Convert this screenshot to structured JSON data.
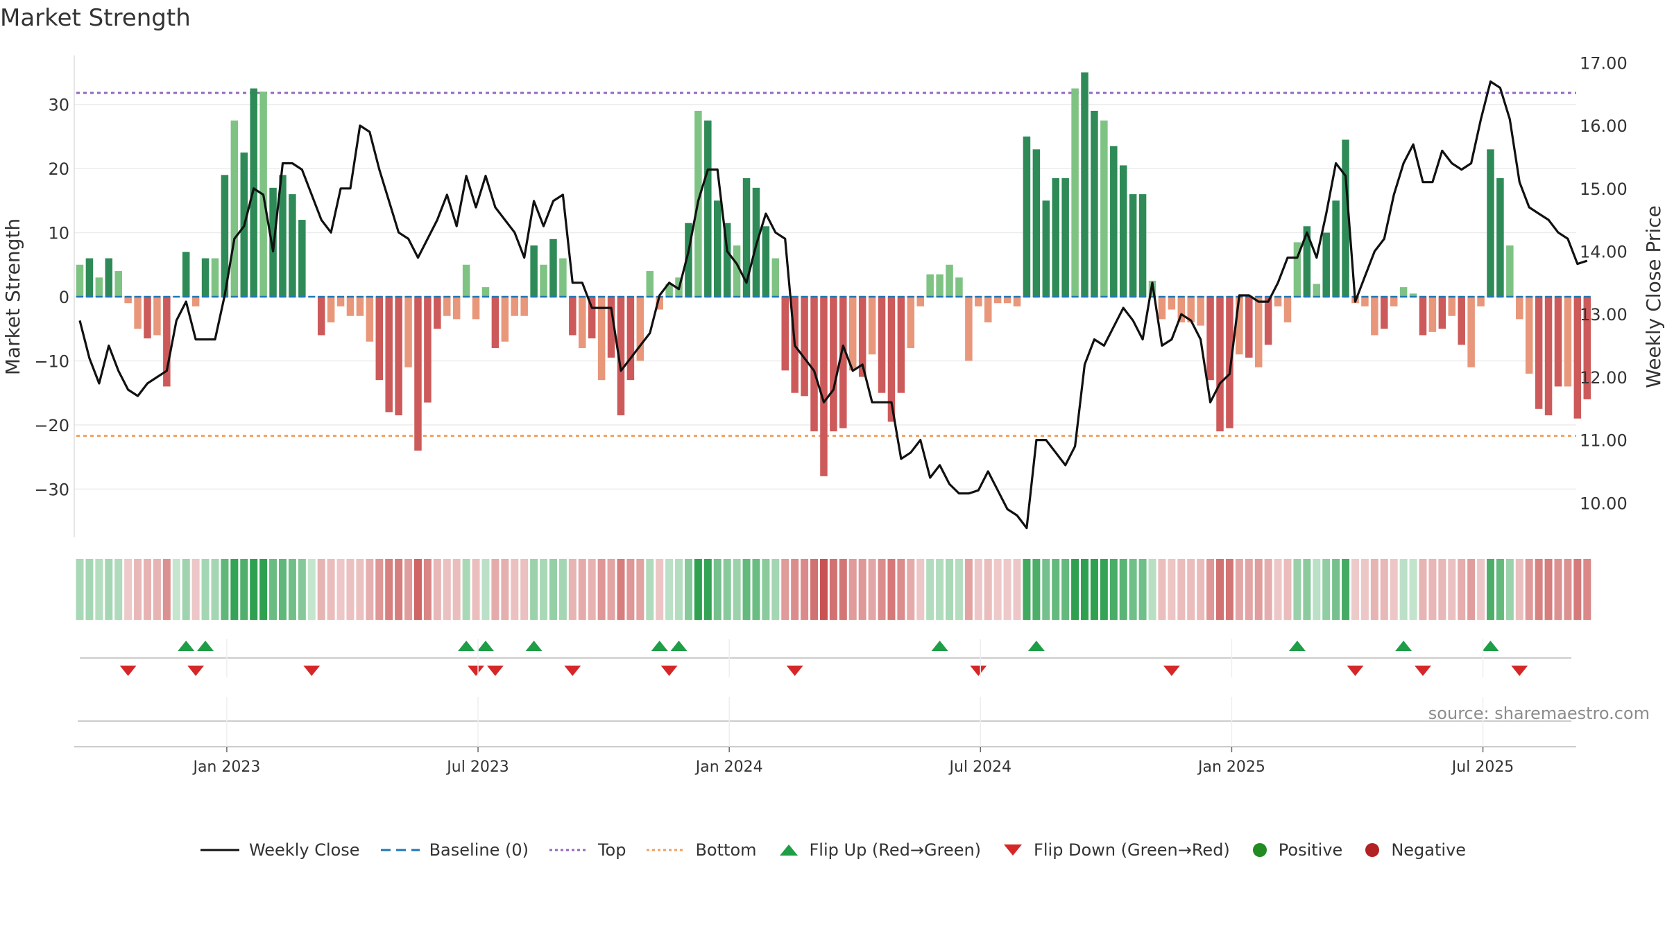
{
  "chart_data": {
    "title": "Market Strength",
    "type": "bar+line",
    "ylabel_left": "Market Strength",
    "ylabel_right": "Weekly Close Price",
    "ylim_left": [
      -37,
      37
    ],
    "ylim_right": [
      9.5,
      17.1
    ],
    "yticks_left": [
      30,
      20,
      10,
      0,
      -10,
      -20,
      -30
    ],
    "yticks_left_labels": [
      "30",
      "20",
      "10",
      "0",
      "−10",
      "−20",
      "−30"
    ],
    "yticks_right": [
      17,
      16,
      15,
      14,
      13,
      12,
      11,
      10
    ],
    "yticks_right_labels": [
      "17.00",
      "16.00",
      "15.00",
      "14.00",
      "13.00",
      "12.00",
      "11.00",
      "10.00"
    ],
    "xticks": [
      {
        "week": 15,
        "label": "Jan 2023"
      },
      {
        "week": 41,
        "label": "Jul 2023"
      },
      {
        "week": 67,
        "label": "Jan 2024"
      },
      {
        "week": 93,
        "label": "Jul 2024"
      },
      {
        "week": 119,
        "label": "Jan 2025"
      },
      {
        "week": 145,
        "label": "Jul 2025"
      }
    ],
    "top_threshold": 31.8,
    "bottom_threshold": -21.7,
    "num_weeks": 157,
    "strength_points": [
      [
        0,
        5
      ],
      [
        1,
        6
      ],
      [
        2,
        3
      ],
      [
        3,
        6
      ],
      [
        4,
        4
      ],
      [
        5,
        -1
      ],
      [
        6,
        -5
      ],
      [
        7,
        -6.5
      ],
      [
        8,
        -6
      ],
      [
        9,
        -14
      ],
      [
        10,
        0
      ],
      [
        11,
        7
      ],
      [
        12,
        -1.5
      ],
      [
        13,
        6
      ],
      [
        14,
        6
      ],
      [
        15,
        19
      ],
      [
        16,
        27.5
      ],
      [
        17,
        22.5
      ],
      [
        18,
        32.5
      ],
      [
        19,
        32
      ],
      [
        20,
        17
      ],
      [
        21,
        19
      ],
      [
        22,
        16
      ],
      [
        23,
        12
      ],
      [
        24,
        0
      ],
      [
        25,
        -6
      ],
      [
        26,
        -4
      ],
      [
        27,
        -1.5
      ],
      [
        28,
        -3
      ],
      [
        29,
        -3
      ],
      [
        30,
        -7
      ],
      [
        31,
        -13
      ],
      [
        32,
        -18
      ],
      [
        33,
        -18.5
      ],
      [
        34,
        -11
      ],
      [
        35,
        -24
      ],
      [
        36,
        -16.5
      ],
      [
        37,
        -5
      ],
      [
        38,
        -3
      ],
      [
        39,
        -3.5
      ],
      [
        40,
        5
      ],
      [
        41,
        -3.5
      ],
      [
        42,
        1.5
      ],
      [
        43,
        -8
      ],
      [
        44,
        -7
      ],
      [
        45,
        -3
      ],
      [
        46,
        -3
      ],
      [
        47,
        8
      ],
      [
        48,
        5
      ],
      [
        49,
        9
      ],
      [
        50,
        6
      ],
      [
        51,
        -6
      ],
      [
        52,
        -8
      ],
      [
        53,
        -6.5
      ],
      [
        54,
        -13
      ],
      [
        55,
        -9.5
      ],
      [
        56,
        -18.5
      ],
      [
        57,
        -13
      ],
      [
        58,
        -10
      ],
      [
        59,
        4
      ],
      [
        60,
        -2
      ],
      [
        61,
        2
      ],
      [
        62,
        3
      ],
      [
        63,
        11.5
      ],
      [
        64,
        29
      ],
      [
        65,
        27.5
      ],
      [
        66,
        15
      ],
      [
        67,
        11.5
      ],
      [
        68,
        8
      ],
      [
        69,
        18.5
      ],
      [
        70,
        17
      ],
      [
        71,
        11
      ],
      [
        72,
        6
      ],
      [
        73,
        -11.5
      ],
      [
        74,
        -15
      ],
      [
        75,
        -15.5
      ],
      [
        76,
        -21
      ],
      [
        77,
        -28
      ],
      [
        78,
        -21
      ],
      [
        79,
        -20.5
      ],
      [
        80,
        -11.5
      ],
      [
        81,
        -12.5
      ],
      [
        82,
        -9
      ],
      [
        83,
        -15
      ],
      [
        84,
        -19.5
      ],
      [
        85,
        -15
      ],
      [
        86,
        -8
      ],
      [
        87,
        -1.5
      ],
      [
        88,
        3.5
      ],
      [
        89,
        3.5
      ],
      [
        90,
        5
      ],
      [
        91,
        3
      ],
      [
        92,
        -10
      ],
      [
        93,
        -1.5
      ],
      [
        94,
        -4
      ],
      [
        95,
        -1
      ],
      [
        96,
        -1
      ],
      [
        97,
        -1.5
      ],
      [
        98,
        25
      ],
      [
        99,
        23
      ],
      [
        100,
        15
      ],
      [
        101,
        18.5
      ],
      [
        102,
        18.5
      ],
      [
        103,
        32.5
      ],
      [
        104,
        35
      ],
      [
        105,
        29
      ],
      [
        106,
        27.5
      ],
      [
        107,
        23.5
      ],
      [
        108,
        20.5
      ],
      [
        109,
        16
      ],
      [
        110,
        16
      ],
      [
        111,
        2.5
      ],
      [
        112,
        -3.5
      ],
      [
        113,
        -2
      ],
      [
        114,
        -4
      ],
      [
        115,
        -4
      ],
      [
        116,
        -4.5
      ],
      [
        117,
        -13
      ],
      [
        118,
        -21
      ],
      [
        119,
        -20.5
      ],
      [
        120,
        -9
      ],
      [
        121,
        -9.5
      ],
      [
        122,
        -11
      ],
      [
        123,
        -7.5
      ],
      [
        124,
        -1.5
      ],
      [
        125,
        -4
      ],
      [
        126,
        8.5
      ],
      [
        127,
        11
      ],
      [
        128,
        2
      ],
      [
        129,
        10
      ],
      [
        130,
        15
      ],
      [
        131,
        24.5
      ],
      [
        132,
        -1
      ],
      [
        133,
        -1.5
      ],
      [
        134,
        -6
      ],
      [
        135,
        -5
      ],
      [
        136,
        -1.5
      ],
      [
        137,
        1.5
      ],
      [
        138,
        0.5
      ],
      [
        139,
        -6
      ],
      [
        140,
        -5.5
      ],
      [
        141,
        -5
      ],
      [
        142,
        -3
      ],
      [
        143,
        -7.5
      ],
      [
        144,
        -11
      ],
      [
        145,
        -1.5
      ],
      [
        146,
        23
      ],
      [
        147,
        18.5
      ],
      [
        148,
        8
      ],
      [
        149,
        -3.5
      ],
      [
        150,
        -12
      ],
      [
        151,
        -17.5
      ],
      [
        152,
        -18.5
      ],
      [
        153,
        -14
      ],
      [
        154,
        -14
      ],
      [
        155,
        -19
      ],
      [
        156,
        -16
      ]
    ],
    "close_points": [
      [
        0,
        12.9
      ],
      [
        1,
        12.3
      ],
      [
        2,
        11.9
      ],
      [
        3,
        12.5
      ],
      [
        4,
        12.1
      ],
      [
        5,
        11.8
      ],
      [
        6,
        11.7
      ],
      [
        7,
        11.9
      ],
      [
        8,
        12
      ],
      [
        9,
        12.1
      ],
      [
        10,
        12.9
      ],
      [
        11,
        13.2
      ],
      [
        12,
        12.6
      ],
      [
        13,
        12.6
      ],
      [
        14,
        12.6
      ],
      [
        15,
        13.3
      ],
      [
        16,
        14.2
      ],
      [
        17,
        14.4
      ],
      [
        18,
        15
      ],
      [
        19,
        14.9
      ],
      [
        20,
        14
      ],
      [
        21,
        15.4
      ],
      [
        22,
        15.4
      ],
      [
        23,
        15.3
      ],
      [
        24,
        14.9
      ],
      [
        25,
        14.5
      ],
      [
        26,
        14.3
      ],
      [
        27,
        15
      ],
      [
        28,
        15
      ],
      [
        29,
        16
      ],
      [
        30,
        15.9
      ],
      [
        31,
        15.3
      ],
      [
        32,
        14.8
      ],
      [
        33,
        14.3
      ],
      [
        34,
        14.2
      ],
      [
        35,
        13.9
      ],
      [
        36,
        14.2
      ],
      [
        37,
        14.5
      ],
      [
        38,
        14.9
      ],
      [
        39,
        14.4
      ],
      [
        40,
        15.2
      ],
      [
        41,
        14.7
      ],
      [
        42,
        15.2
      ],
      [
        43,
        14.7
      ],
      [
        44,
        14.5
      ],
      [
        45,
        14.3
      ],
      [
        46,
        13.9
      ],
      [
        47,
        14.8
      ],
      [
        48,
        14.4
      ],
      [
        49,
        14.8
      ],
      [
        50,
        14.9
      ],
      [
        51,
        13.5
      ],
      [
        52,
        13.5
      ],
      [
        53,
        13.1
      ],
      [
        54,
        13.1
      ],
      [
        55,
        13.1
      ],
      [
        56,
        12.1
      ],
      [
        57,
        12.3
      ],
      [
        58,
        12.5
      ],
      [
        59,
        12.7
      ],
      [
        60,
        13.3
      ],
      [
        61,
        13.5
      ],
      [
        62,
        13.4
      ],
      [
        63,
        14
      ],
      [
        64,
        14.8
      ],
      [
        65,
        15.3
      ],
      [
        66,
        15.3
      ],
      [
        67,
        14
      ],
      [
        68,
        13.8
      ],
      [
        69,
        13.5
      ],
      [
        70,
        14.1
      ],
      [
        71,
        14.6
      ],
      [
        72,
        14.3
      ],
      [
        73,
        14.2
      ],
      [
        74,
        12.5
      ],
      [
        75,
        12.3
      ],
      [
        76,
        12.1
      ],
      [
        77,
        11.6
      ],
      [
        78,
        11.8
      ],
      [
        79,
        12.5
      ],
      [
        80,
        12.1
      ],
      [
        81,
        12.2
      ],
      [
        82,
        11.6
      ],
      [
        83,
        11.6
      ],
      [
        84,
        11.6
      ],
      [
        85,
        10.7
      ],
      [
        86,
        10.8
      ],
      [
        87,
        11
      ],
      [
        88,
        10.4
      ],
      [
        89,
        10.6
      ],
      [
        90,
        10.3
      ],
      [
        91,
        10.15
      ],
      [
        92,
        10.15
      ],
      [
        93,
        10.2
      ],
      [
        94,
        10.5
      ],
      [
        95,
        10.2
      ],
      [
        96,
        9.9
      ],
      [
        97,
        9.8
      ],
      [
        98,
        9.6
      ],
      [
        99,
        11
      ],
      [
        100,
        11
      ],
      [
        101,
        10.8
      ],
      [
        102,
        10.6
      ],
      [
        103,
        10.9
      ],
      [
        104,
        12.2
      ],
      [
        105,
        12.6
      ],
      [
        106,
        12.5
      ],
      [
        107,
        12.8
      ],
      [
        108,
        13.1
      ],
      [
        109,
        12.9
      ],
      [
        110,
        12.6
      ],
      [
        111,
        13.5
      ],
      [
        112,
        12.5
      ],
      [
        113,
        12.6
      ],
      [
        114,
        13
      ],
      [
        115,
        12.9
      ],
      [
        116,
        12.6
      ],
      [
        117,
        11.6
      ],
      [
        118,
        11.9
      ],
      [
        119,
        12.05
      ],
      [
        120,
        13.3
      ],
      [
        121,
        13.3
      ],
      [
        122,
        13.2
      ],
      [
        123,
        13.2
      ],
      [
        124,
        13.5
      ],
      [
        125,
        13.9
      ],
      [
        126,
        13.9
      ],
      [
        127,
        14.3
      ],
      [
        128,
        13.9
      ],
      [
        129,
        14.6
      ],
      [
        130,
        15.4
      ],
      [
        131,
        15.2
      ],
      [
        132,
        13.2
      ],
      [
        133,
        13.6
      ],
      [
        134,
        14
      ],
      [
        135,
        14.2
      ],
      [
        136,
        14.9
      ],
      [
        137,
        15.4
      ],
      [
        138,
        15.7
      ],
      [
        139,
        15.1
      ],
      [
        140,
        15.1
      ],
      [
        141,
        15.6
      ],
      [
        142,
        15.4
      ],
      [
        143,
        15.3
      ],
      [
        144,
        15.4
      ],
      [
        145,
        16.1
      ],
      [
        146,
        16.7
      ],
      [
        147,
        16.6
      ],
      [
        148,
        16.1
      ],
      [
        149,
        15.1
      ],
      [
        150,
        14.7
      ],
      [
        151,
        14.6
      ],
      [
        152,
        14.5
      ],
      [
        153,
        14.3
      ],
      [
        154,
        14.2
      ],
      [
        155,
        13.8
      ],
      [
        156,
        13.85
      ]
    ],
    "flip_up_weeks": [
      11,
      13,
      40,
      42,
      47,
      60,
      62,
      89,
      99,
      126,
      137,
      146
    ],
    "flip_down_weeks": [
      5,
      12,
      24,
      41,
      43,
      51,
      61,
      74,
      93,
      113,
      132,
      139,
      149
    ],
    "legend": [
      "Weekly Close",
      "Baseline (0)",
      "Top",
      "Bottom",
      "Flip Up (Red→Green)",
      "Flip Down (Green→Red)",
      "Positive",
      "Negative"
    ]
  },
  "colors": {
    "pos_strong": "#2e8b57",
    "pos_light": "#7fc384",
    "neg_strong": "#cd5a5a",
    "neg_light": "#e8977b",
    "price_line": "#111111",
    "baseline": "#1f77b4",
    "top_line": "#9467bd",
    "bottom_line": "#f0a060",
    "flip_up": "#1e9e46",
    "flip_down": "#d62728",
    "positive_dot": "#228b22",
    "negative_dot": "#b22222"
  },
  "source": "source: sharemaestro.com"
}
